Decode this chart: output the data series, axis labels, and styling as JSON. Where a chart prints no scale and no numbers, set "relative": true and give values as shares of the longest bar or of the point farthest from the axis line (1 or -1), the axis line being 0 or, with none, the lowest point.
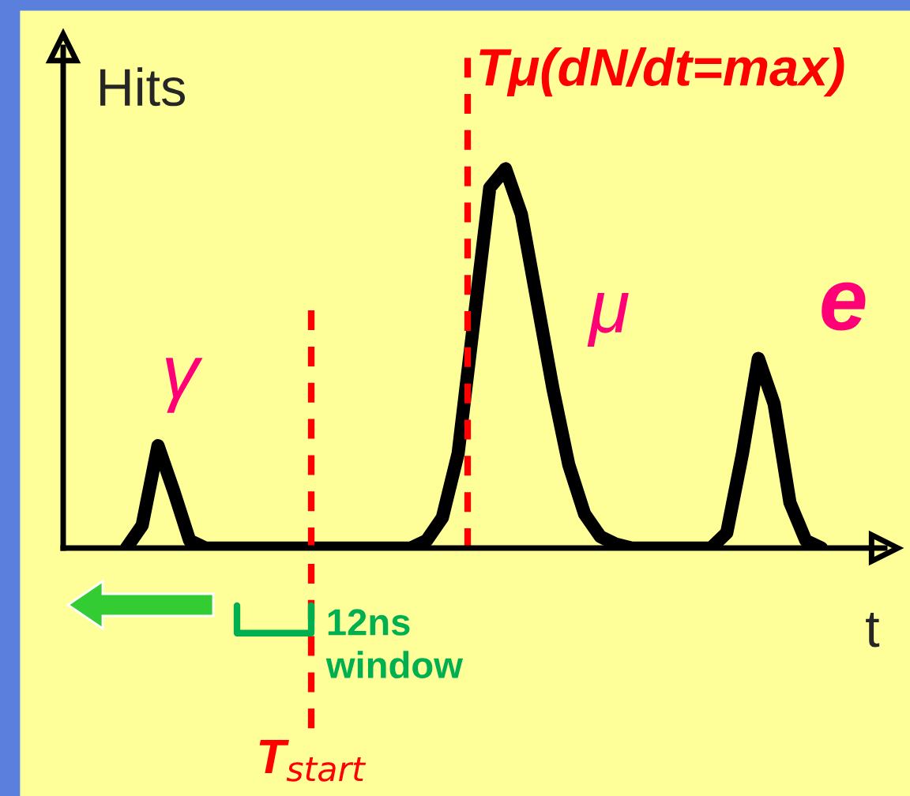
{
  "chart_data": {
    "type": "line",
    "relative": true,
    "xlabel": "t",
    "ylabel": "Hits",
    "categories": [
      null,
      null,
      null,
      null,
      null,
      null,
      null,
      null,
      null,
      null,
      null,
      null,
      null,
      null,
      null,
      null,
      null,
      null,
      null,
      null,
      null,
      null,
      null,
      null,
      null,
      null,
      null,
      null,
      null,
      null,
      null,
      null,
      null,
      null,
      null,
      null,
      null,
      null,
      null,
      null,
      null,
      null,
      null,
      null,
      null,
      null,
      null,
      null,
      null,
      null,
      null,
      null,
      null
    ],
    "series": [
      {
        "color": "#000000",
        "values": [
          null,
          null,
          null,
          null,
          0,
          0.06,
          0.27,
          0.15,
          0.02,
          0,
          0,
          0,
          0,
          0,
          0,
          0,
          0,
          0,
          0,
          0,
          0,
          0,
          0,
          0.02,
          0.08,
          0.25,
          0.6,
          0.95,
          1.0,
          0.88,
          0.65,
          0.42,
          0.22,
          0.09,
          0.03,
          0.01,
          0,
          0,
          0,
          0,
          0,
          0,
          0.04,
          0.25,
          0.5,
          0.38,
          0.12,
          0.02,
          0,
          null,
          null,
          null,
          null
        ]
      }
    ],
    "ref_lines": [
      {
        "axis": "x",
        "label": "T$_{start}$",
        "color": "#ff0000",
        "line_style": "dashed"
      },
      {
        "axis": "x",
        "label": "Tμ(dN/dt=max)",
        "color": "#ff0000",
        "line_style": "dashed"
      }
    ],
    "annotations": [
      "γ",
      "μ",
      "e",
      "12ns window"
    ],
    "marker": "none",
    "line_style": "solid"
  }
}
